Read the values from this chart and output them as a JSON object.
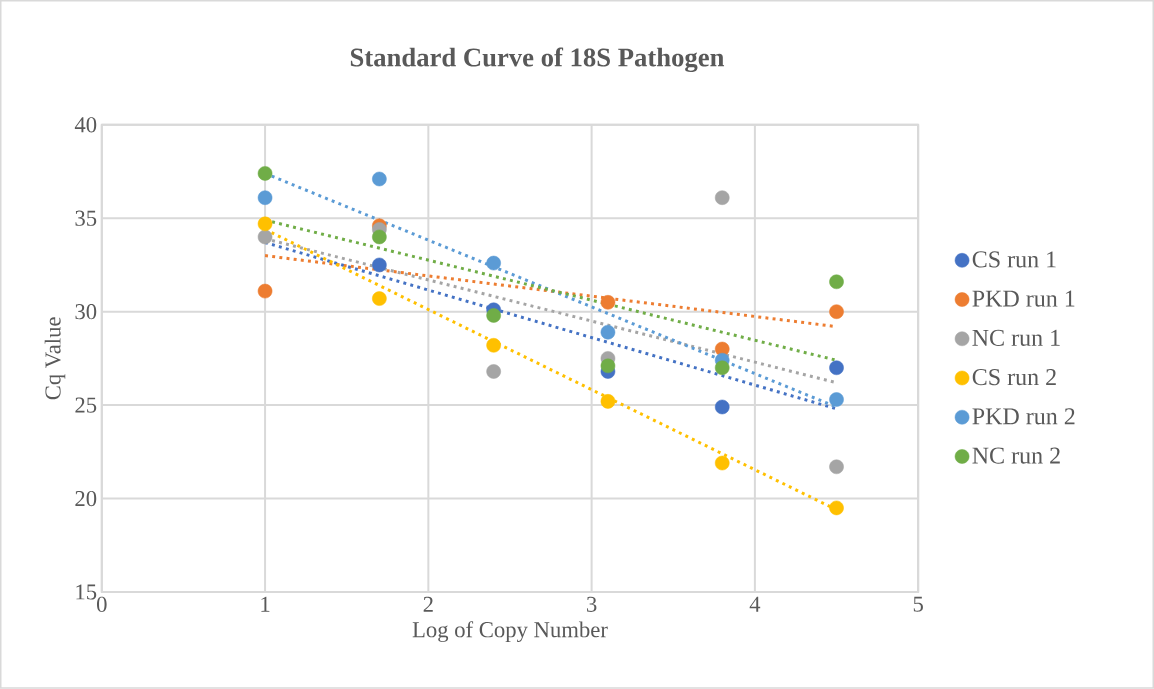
{
  "chart_data": {
    "type": "scatter",
    "title": "Standard Curve of 18S Pathogen",
    "xlabel": "Log of Copy Number",
    "ylabel": "Cq Value",
    "xlim": [
      0,
      5
    ],
    "xticks": [
      0,
      1,
      2,
      3,
      4,
      5
    ],
    "ylim": [
      15,
      40
    ],
    "yticks": [
      15,
      20,
      25,
      30,
      35,
      40
    ],
    "grid": true,
    "legend": "right",
    "marker": "circle",
    "series": [
      {
        "name": "CS run 1",
        "color": "#4472c4",
        "x": [
          1.7,
          2.4,
          3.1,
          3.8,
          4.5
        ],
        "values": [
          32.5,
          30.1,
          26.8,
          24.9,
          27.0
        ]
      },
      {
        "name": "PKD run 1",
        "color": "#ed7d31",
        "x": [
          1,
          1.7,
          2.4,
          3.1,
          3.8,
          4.5
        ],
        "values": [
          31.1,
          34.6,
          null,
          30.5,
          28.0,
          30.0
        ]
      },
      {
        "name": "NC run 1",
        "color": "#a5a5a5",
        "x": [
          1,
          1.7,
          2.4,
          3.1,
          3.8,
          4.5
        ],
        "values": [
          34.0,
          34.4,
          26.8,
          27.5,
          36.1,
          21.7
        ]
      },
      {
        "name": "CS run 2",
        "color": "#ffc000",
        "x": [
          1,
          1.7,
          2.4,
          3.1,
          3.8,
          4.5
        ],
        "values": [
          34.7,
          30.7,
          28.2,
          25.2,
          21.9,
          19.5
        ]
      },
      {
        "name": "PKD run 2",
        "color": "#5b9bd5",
        "x": [
          1,
          1.7,
          2.4,
          3.1,
          3.8,
          4.5
        ],
        "values": [
          36.1,
          37.1,
          32.6,
          28.9,
          27.4,
          25.3
        ]
      },
      {
        "name": "NC run 2",
        "color": "#70ad47",
        "x": [
          1,
          1.7,
          2.4,
          3.1,
          3.8,
          4.5
        ],
        "values": [
          37.4,
          34.0,
          29.8,
          27.1,
          27.0,
          31.6
        ]
      },
      {
        "type": "line",
        "line_style": "dotted",
        "marker": "none",
        "color": "#4472c4",
        "x": [
          1,
          4.5
        ],
        "values": [
          33.7,
          24.8
        ]
      },
      {
        "type": "line",
        "line_style": "dotted",
        "marker": "none",
        "color": "#ed7d31",
        "x": [
          1,
          4.5
        ],
        "values": [
          33.0,
          29.2
        ]
      },
      {
        "type": "line",
        "line_style": "dotted",
        "marker": "none",
        "color": "#a5a5a5",
        "x": [
          1,
          4.5
        ],
        "values": [
          33.9,
          26.2
        ]
      },
      {
        "type": "line",
        "line_style": "dotted",
        "marker": "none",
        "color": "#ffc000",
        "x": [
          1,
          4.5
        ],
        "values": [
          34.4,
          19.4
        ]
      },
      {
        "type": "line",
        "line_style": "dotted",
        "marker": "none",
        "color": "#5b9bd5",
        "x": [
          1,
          4.5
        ],
        "values": [
          37.4,
          24.9
        ]
      },
      {
        "type": "line",
        "line_style": "dotted",
        "marker": "none",
        "color": "#70ad47",
        "x": [
          1,
          4.5
        ],
        "values": [
          34.9,
          27.4
        ]
      }
    ]
  }
}
